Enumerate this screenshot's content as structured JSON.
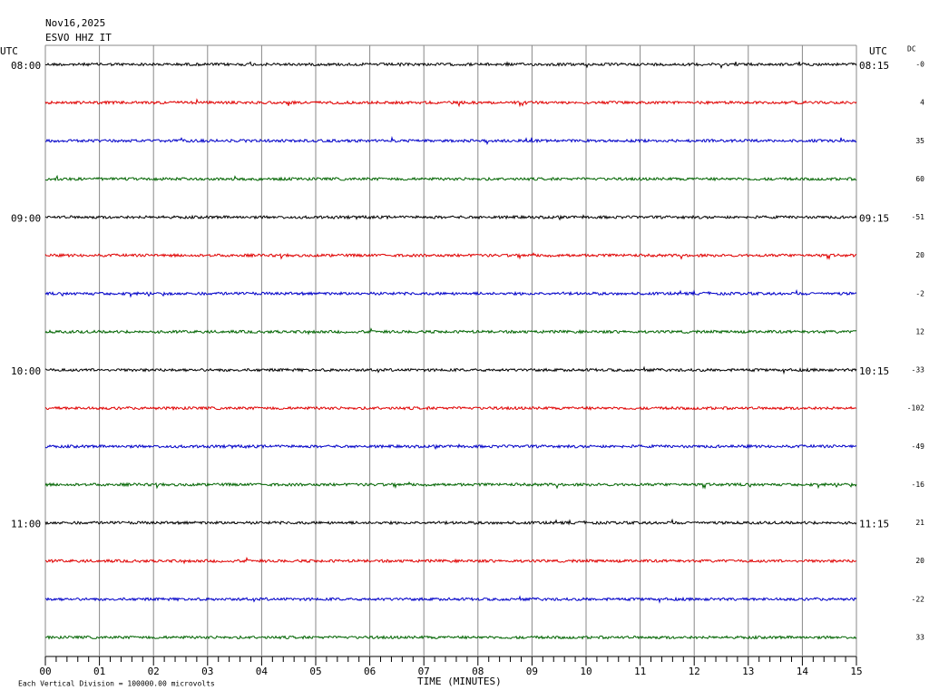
{
  "header": {
    "date": "Nov16,2025",
    "station": "ESVO HHZ IT",
    "left_unit": "UTC",
    "right_unit": "UTC",
    "dc_header": "DC"
  },
  "rows": [
    {
      "left": "08:00",
      "right": "08:15",
      "dc": "-0",
      "color": "#000000"
    },
    {
      "dc": "4",
      "color": "#e00000"
    },
    {
      "dc": "35",
      "color": "#0000c8"
    },
    {
      "dc": "60",
      "color": "#006400"
    },
    {
      "left": "09:00",
      "right": "09:15",
      "dc": "-51",
      "color": "#000000"
    },
    {
      "dc": "20",
      "color": "#e00000"
    },
    {
      "dc": "-2",
      "color": "#0000c8"
    },
    {
      "dc": "12",
      "color": "#006400"
    },
    {
      "left": "10:00",
      "right": "10:15",
      "dc": "-33",
      "color": "#000000"
    },
    {
      "dc": "-102",
      "color": "#e00000"
    },
    {
      "dc": "-49",
      "color": "#0000c8"
    },
    {
      "dc": "-16",
      "color": "#006400"
    },
    {
      "left": "11:00",
      "right": "11:15",
      "dc": "21",
      "color": "#000000"
    },
    {
      "dc": "20",
      "color": "#e00000"
    },
    {
      "dc": "-22",
      "color": "#0000c8"
    },
    {
      "dc": "33",
      "color": "#006400"
    }
  ],
  "x_axis": {
    "label": "TIME (MINUTES)",
    "ticks": [
      "00",
      "01",
      "02",
      "03",
      "04",
      "05",
      "06",
      "07",
      "08",
      "09",
      "10",
      "11",
      "12",
      "13",
      "14",
      "15"
    ]
  },
  "footer": "Each Vertical Division = 100000.00 microvolts"
}
